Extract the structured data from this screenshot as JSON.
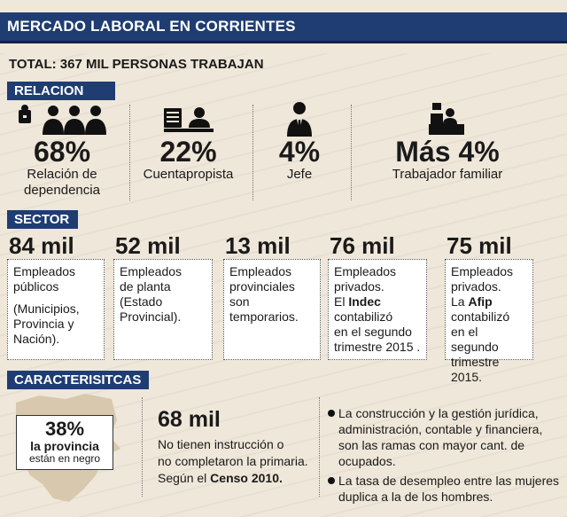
{
  "header": {
    "title": "MERCADO LABORAL EN CORRIENTES"
  },
  "total": "TOTAL: 367 MIL PERSONAS TRABAJAN",
  "sections": {
    "relacion": "RELACION",
    "sector": "SECTOR",
    "caracteristicas": "CARACTERISITCAS"
  },
  "relacion": [
    {
      "pct": "68%",
      "label_line1": "Relación de",
      "label_line2": "dependencia",
      "icon": "workers-icon"
    },
    {
      "pct": "22%",
      "label_line1": "Cuentapropista",
      "label_line2": "",
      "icon": "self-employed-icon"
    },
    {
      "pct": "4%",
      "label_line1": "Jefe",
      "label_line2": "",
      "icon": "boss-icon"
    },
    {
      "pct": "Más 4%",
      "label_line1": "Trabajador familiar",
      "label_line2": "",
      "icon": "family-worker-icon"
    }
  ],
  "sector": [
    {
      "num": "84 mil",
      "lines": [
        "Empleados",
        "públicos",
        "",
        "(Municipios,",
        "Provincia y",
        "Nación)."
      ]
    },
    {
      "num": "52 mil",
      "lines": [
        "Empleados",
        "de planta",
        "(Estado",
        "Provincial)."
      ]
    },
    {
      "num": "13 mil",
      "lines": [
        "Empleados",
        "provinciales",
        "son",
        "temporarios."
      ]
    },
    {
      "num": "76 mil",
      "l1": "Empleados",
      "l2": "privados.",
      "l3a": "El ",
      "l3b": "Indec",
      "l4": "contabilizó",
      "l5": "en el segundo",
      "l6": "trimestre 2015 ."
    },
    {
      "num": "75 mil",
      "l1": "Empleados",
      "l2": "privados.",
      "l3a": "La ",
      "l3b": "Afip",
      "l4": "contabilizó",
      "l5": "en el segundo",
      "l6": "trimestre 2015."
    }
  ],
  "caracteristicas": {
    "pct": "38%",
    "pct_line1": "la provincia",
    "pct_line2": "están en negro",
    "mil": "68 mil",
    "mil_line1": "No tienen instrucción o",
    "mil_line2": "no completaron la primaria.",
    "mil_line3a": "Según el ",
    "mil_line3b": "Censo 2010.",
    "bullet1": "La construcción y la gestión jurídica, administración, contable y financiera, son las ramas con mayor cant. de ocupados.",
    "bullet2": "La tasa de desempleo entre las mujeres duplica a la de los hombres."
  },
  "colors": {
    "navy": "#1f3d73",
    "background": "#efe7d9"
  }
}
